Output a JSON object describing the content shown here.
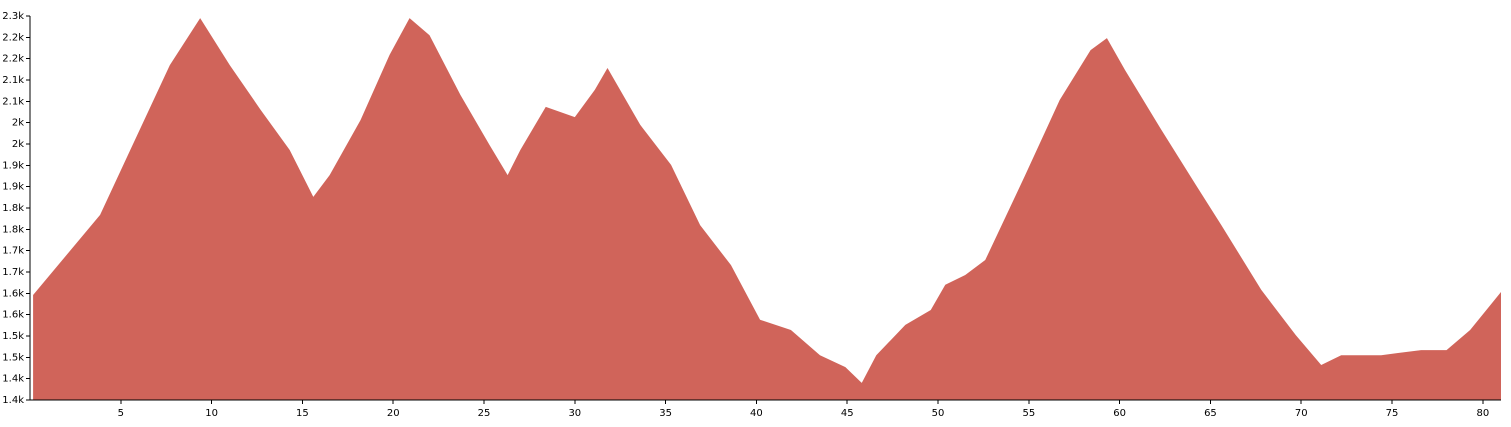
{
  "chart_data": {
    "type": "area",
    "color": "#d0645a",
    "x": [
      0.17,
      3.86,
      7.7,
      9.37,
      11.0,
      12.7,
      14.3,
      15.6,
      16.5,
      18.2,
      19.8,
      20.9,
      22.0,
      23.7,
      25.3,
      26.3,
      27.0,
      28.4,
      30.0,
      31.1,
      31.8,
      33.6,
      35.3,
      36.9,
      38.6,
      40.2,
      41.9,
      43.5,
      44.9,
      45.8,
      46.6,
      48.2,
      49.6,
      50.4,
      51.5,
      52.6,
      54.8,
      56.7,
      58.4,
      59.3,
      60.3,
      62.3,
      64.2,
      65.6,
      67.8,
      69.7,
      71.1,
      72.2,
      74.4,
      76.6,
      78.0,
      79.3,
      81.0
    ],
    "values": [
      1646,
      1834,
      2185,
      2295,
      2185,
      2080,
      1986,
      1876,
      1927,
      2056,
      2209,
      2295,
      2255,
      2115,
      1998,
      1927,
      1986,
      2087,
      2063,
      2127,
      2178,
      2045,
      1951,
      1810,
      1716,
      1588,
      1564,
      1505,
      1477,
      1440,
      1505,
      1576,
      1611,
      1670,
      1693,
      1728,
      1927,
      2103,
      2220,
      2248,
      2173,
      2033,
      1904,
      1810,
      1658,
      1552,
      1482,
      1505,
      1505,
      1517,
      1517,
      1564,
      1653
    ],
    "xlim": [
      0,
      81.0
    ],
    "xticks": [
      5,
      10,
      15,
      20,
      25,
      30,
      35,
      40,
      45,
      50,
      55,
      60,
      65,
      70,
      75,
      80
    ],
    "ylim": [
      1400,
      2300
    ],
    "yticks": [
      {
        "value": 1400,
        "label": "1.4k"
      },
      {
        "value": 1450,
        "label": "1.4k"
      },
      {
        "value": 1500,
        "label": "1.5k"
      },
      {
        "value": 1550,
        "label": "1.5k"
      },
      {
        "value": 1600,
        "label": "1.6k"
      },
      {
        "value": 1650,
        "label": "1.6k"
      },
      {
        "value": 1700,
        "label": "1.7k"
      },
      {
        "value": 1750,
        "label": "1.7k"
      },
      {
        "value": 1800,
        "label": "1.8k"
      },
      {
        "value": 1850,
        "label": "1.8k"
      },
      {
        "value": 1900,
        "label": "1.9k"
      },
      {
        "value": 1950,
        "label": "1.9k"
      },
      {
        "value": 2000,
        "label": "2k"
      },
      {
        "value": 2050,
        "label": "2k"
      },
      {
        "value": 2100,
        "label": "2.1k"
      },
      {
        "value": 2150,
        "label": "2.1k"
      },
      {
        "value": 2200,
        "label": "2.2k"
      },
      {
        "value": 2250,
        "label": "2.2k"
      },
      {
        "value": 2300,
        "label": "2.3k"
      }
    ]
  }
}
